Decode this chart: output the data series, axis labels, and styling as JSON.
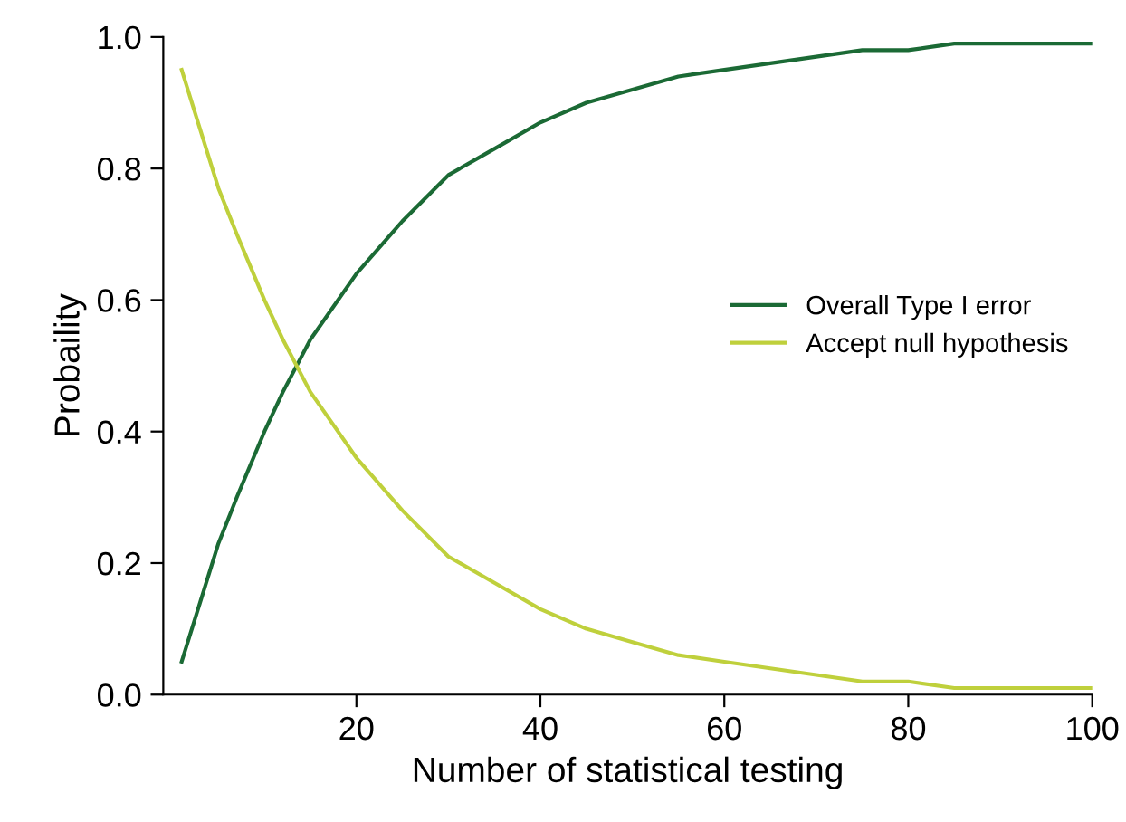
{
  "chart_data": {
    "type": "line",
    "xlabel": "Number of statistical testing",
    "ylabel": "Probaility",
    "x": [
      1,
      3,
      5,
      7,
      10,
      12,
      15,
      17,
      20,
      25,
      30,
      35,
      40,
      45,
      50,
      55,
      60,
      65,
      70,
      75,
      80,
      85,
      90,
      95,
      100
    ],
    "series": [
      {
        "name": "Overall Type I error",
        "color": "#1b6a35",
        "values": [
          0.05,
          0.14,
          0.23,
          0.3,
          0.4,
          0.46,
          0.54,
          0.58,
          0.64,
          0.72,
          0.79,
          0.83,
          0.87,
          0.9,
          0.92,
          0.94,
          0.95,
          0.96,
          0.97,
          0.98,
          0.98,
          0.99,
          0.99,
          0.99,
          0.99
        ]
      },
      {
        "name": "Accept null hypothesis",
        "color": "#bfd03c",
        "values": [
          0.95,
          0.86,
          0.77,
          0.7,
          0.6,
          0.54,
          0.46,
          0.42,
          0.36,
          0.28,
          0.21,
          0.17,
          0.13,
          0.1,
          0.08,
          0.06,
          0.05,
          0.04,
          0.03,
          0.02,
          0.02,
          0.01,
          0.01,
          0.01,
          0.01
        ]
      }
    ],
    "xlim": [
      -1,
      100
    ],
    "xticks": [
      20,
      40,
      60,
      80,
      100
    ],
    "ylim": [
      0,
      1
    ],
    "yticks": [
      {
        "value": 0,
        "label": "0.0"
      },
      {
        "value": 0.2,
        "label": "0.2"
      },
      {
        "value": 0.4,
        "label": "0.4"
      },
      {
        "value": 0.6,
        "label": "0.6"
      },
      {
        "value": 0.8,
        "label": "0.8"
      },
      {
        "value": 1,
        "label": "1.0"
      }
    ],
    "legend": "right",
    "grid": false,
    "marker": "none",
    "line_style": "solid"
  }
}
